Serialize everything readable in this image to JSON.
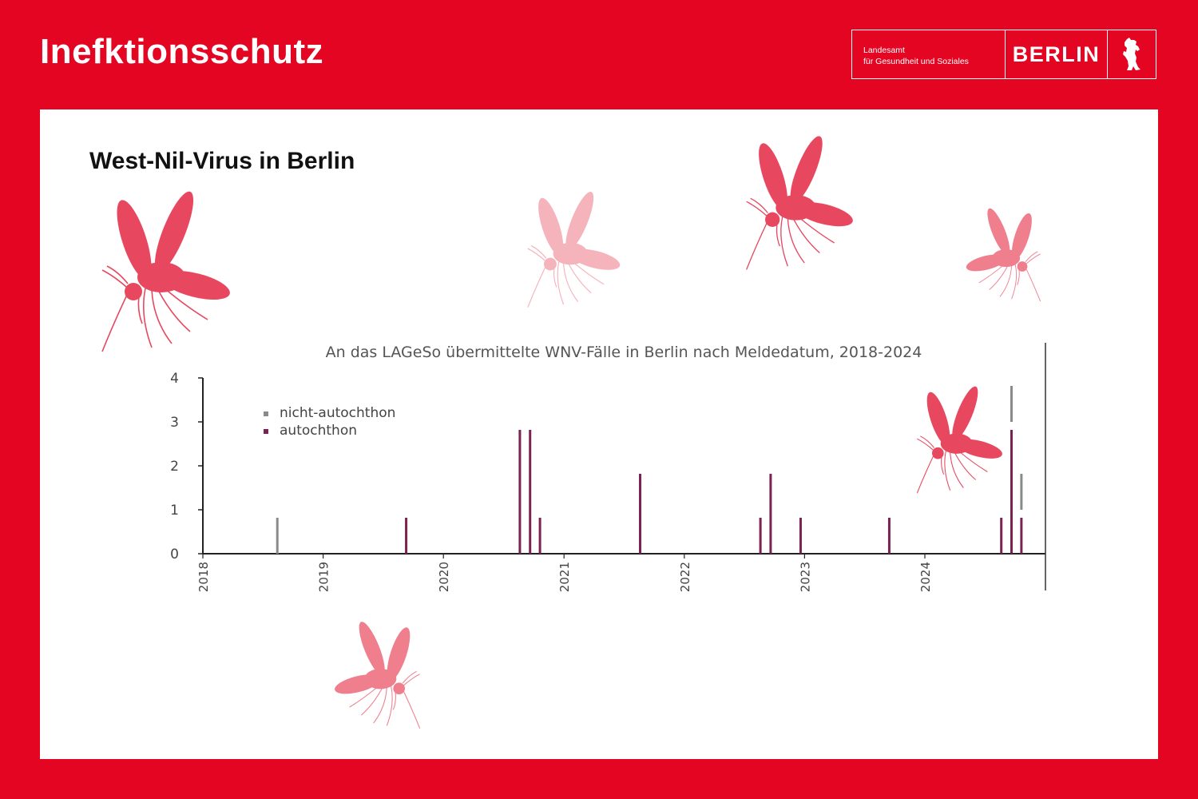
{
  "header": {
    "title": "Inefktionsschutz",
    "logo": {
      "agency_line1": "Landesamt",
      "agency_line2": "für Gesundheit und Soziales",
      "city": "BERLIN",
      "emblem_icon": "berlin-bear-icon"
    }
  },
  "card": {
    "title": "West-Nil-Virus in Berlin"
  },
  "decorations": {
    "icon": "mosquito-icon",
    "colors": [
      "#e8485f",
      "#f5b3bc",
      "#f07f8e"
    ]
  },
  "colors": {
    "background": "#e30521",
    "card": "#ffffff",
    "text_light": "#ffffff"
  },
  "chart_data": {
    "type": "bar",
    "title": "An das LAGeSo übermittelte WNV-Fälle in Berlin nach Meldedatum, 2018-2024",
    "xlabel": "",
    "ylabel": "",
    "ylim": [
      0,
      4
    ],
    "yticks": [
      0,
      1,
      2,
      3,
      4
    ],
    "xticks": [
      "2018",
      "2019",
      "2020",
      "2021",
      "2022",
      "2023",
      "2024"
    ],
    "xlim": [
      "2018-01-01",
      "2025-01-01"
    ],
    "stacked": true,
    "legend_position": "top-left",
    "series": [
      {
        "name": "nicht-autochthon",
        "color": "#8a8a8a"
      },
      {
        "name": "autochthon",
        "color": "#7c2253"
      }
    ],
    "data": [
      {
        "date": "2018-08-15",
        "autochthon": 0,
        "nicht-autochthon": 1
      },
      {
        "date": "2019-09-10",
        "autochthon": 1,
        "nicht-autochthon": 0
      },
      {
        "date": "2020-08-20",
        "autochthon": 3,
        "nicht-autochthon": 0
      },
      {
        "date": "2020-09-20",
        "autochthon": 3,
        "nicht-autochthon": 0
      },
      {
        "date": "2020-10-20",
        "autochthon": 1,
        "nicht-autochthon": 0
      },
      {
        "date": "2021-08-20",
        "autochthon": 2,
        "nicht-autochthon": 0
      },
      {
        "date": "2022-08-20",
        "autochthon": 1,
        "nicht-autochthon": 0
      },
      {
        "date": "2022-09-20",
        "autochthon": 2,
        "nicht-autochthon": 0
      },
      {
        "date": "2022-12-20",
        "autochthon": 1,
        "nicht-autochthon": 0
      },
      {
        "date": "2023-09-15",
        "autochthon": 1,
        "nicht-autochthon": 0
      },
      {
        "date": "2024-08-20",
        "autochthon": 1,
        "nicht-autochthon": 0
      },
      {
        "date": "2024-09-20",
        "autochthon": 3,
        "nicht-autochthon": 1
      },
      {
        "date": "2024-10-20",
        "autochthon": 1,
        "nicht-autochthon": 1
      }
    ],
    "grid": false
  }
}
